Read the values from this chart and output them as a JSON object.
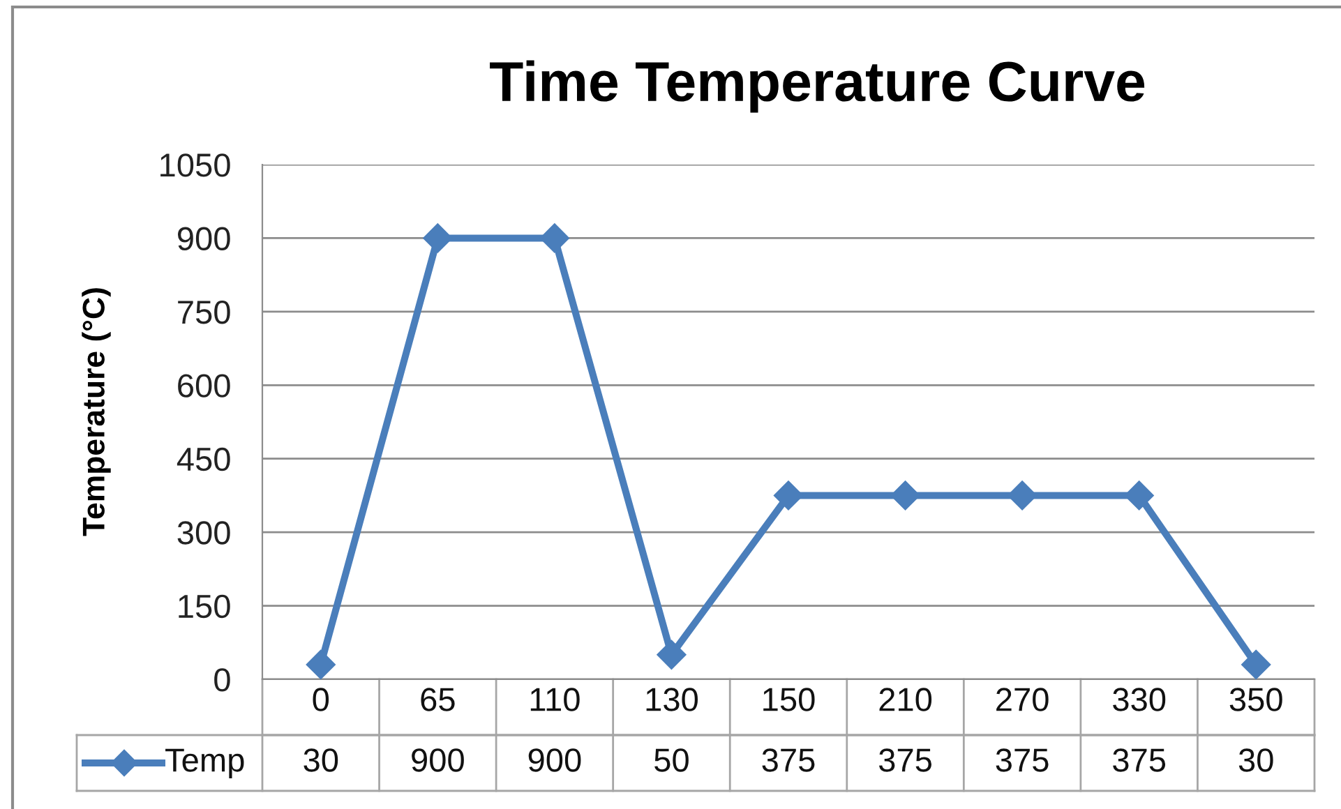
{
  "chart_data": {
    "type": "line",
    "title": "Time Temperature Curve",
    "ylabel": "Temperature (°C)",
    "categories": [
      "0",
      "65",
      "110",
      "130",
      "150",
      "210",
      "270",
      "330",
      "350"
    ],
    "series": [
      {
        "name": "Temp",
        "color": "#4a7ebb",
        "values": [
          30,
          900,
          900,
          50,
          375,
          375,
          375,
          375,
          30
        ]
      }
    ],
    "ylim": [
      0,
      1050
    ],
    "yticks": [
      0,
      150,
      300,
      450,
      600,
      750,
      900,
      1050
    ],
    "grid": "y",
    "legend": "bottom left",
    "marker": "diamond",
    "line_style": "solid",
    "data_labels": true
  }
}
